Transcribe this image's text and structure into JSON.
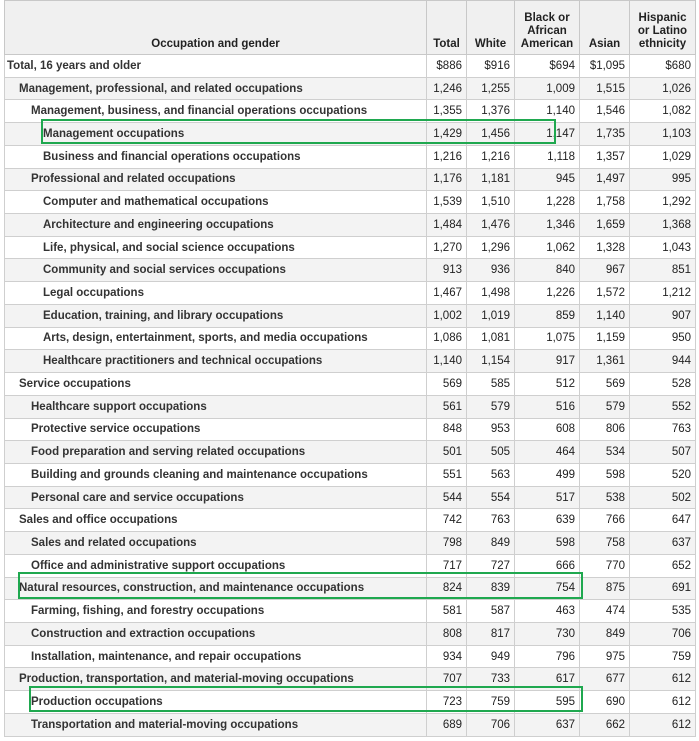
{
  "table": {
    "header": [
      "Occupation and gender",
      "Total",
      "White",
      "Black or African American",
      "Asian",
      "Hispanic or Latino ethnicity"
    ],
    "rows": [
      [
        "Total, 16 years and older",
        "$886",
        "$916",
        "$694",
        "$1,095",
        "$680"
      ],
      [
        "Management, professional, and related occupations",
        "1,246",
        "1,255",
        "1,009",
        "1,515",
        "1,026"
      ],
      [
        "Management, business, and financial operations occupations",
        "1,355",
        "1,376",
        "1,140",
        "1,546",
        "1,082"
      ],
      [
        "Management occupations",
        "1,429",
        "1,456",
        "1,147",
        "1,735",
        "1,103"
      ],
      [
        "Business and financial operations occupations",
        "1,216",
        "1,216",
        "1,118",
        "1,357",
        "1,029"
      ],
      [
        "Professional and related occupations",
        "1,176",
        "1,181",
        "945",
        "1,497",
        "995"
      ],
      [
        "Computer and mathematical occupations",
        "1,539",
        "1,510",
        "1,228",
        "1,758",
        "1,292"
      ],
      [
        "Architecture and engineering occupations",
        "1,484",
        "1,476",
        "1,346",
        "1,659",
        "1,368"
      ],
      [
        "Life, physical, and social science occupations",
        "1,270",
        "1,296",
        "1,062",
        "1,328",
        "1,043"
      ],
      [
        "Community and social services occupations",
        "913",
        "936",
        "840",
        "967",
        "851"
      ],
      [
        "Legal occupations",
        "1,467",
        "1,498",
        "1,226",
        "1,572",
        "1,212"
      ],
      [
        "Education, training, and library occupations",
        "1,002",
        "1,019",
        "859",
        "1,140",
        "907"
      ],
      [
        "Arts, design, entertainment, sports, and media occupations",
        "1,086",
        "1,081",
        "1,075",
        "1,159",
        "950"
      ],
      [
        "Healthcare practitioners and technical occupations",
        "1,140",
        "1,154",
        "917",
        "1,361",
        "944"
      ],
      [
        "Service occupations",
        "569",
        "585",
        "512",
        "569",
        "528"
      ],
      [
        "Healthcare support occupations",
        "561",
        "579",
        "516",
        "579",
        "552"
      ],
      [
        "Protective service occupations",
        "848",
        "953",
        "608",
        "806",
        "763"
      ],
      [
        "Food preparation and serving related occupations",
        "501",
        "505",
        "464",
        "534",
        "507"
      ],
      [
        "Building and grounds cleaning and maintenance occupations",
        "551",
        "563",
        "499",
        "598",
        "520"
      ],
      [
        "Personal care and service occupations",
        "544",
        "554",
        "517",
        "538",
        "502"
      ],
      [
        "Sales and office occupations",
        "742",
        "763",
        "639",
        "766",
        "647"
      ],
      [
        "Sales and related occupations",
        "798",
        "849",
        "598",
        "758",
        "637"
      ],
      [
        "Office and administrative support occupations",
        "717",
        "727",
        "666",
        "770",
        "652"
      ],
      [
        "Natural resources, construction, and maintenance occupations",
        "824",
        "839",
        "754",
        "875",
        "691"
      ],
      [
        "Farming, fishing, and forestry occupations",
        "581",
        "587",
        "463",
        "474",
        "535"
      ],
      [
        "Construction and extraction occupations",
        "808",
        "817",
        "730",
        "849",
        "706"
      ],
      [
        "Installation, maintenance, and repair occupations",
        "934",
        "949",
        "796",
        "975",
        "759"
      ],
      [
        "Production, transportation, and material-moving occupations",
        "707",
        "733",
        "617",
        "677",
        "612"
      ],
      [
        "Production occupations",
        "723",
        "759",
        "595",
        "690",
        "612"
      ],
      [
        "Transportation and material-moving occupations",
        "689",
        "706",
        "637",
        "662",
        "612"
      ]
    ]
  }
}
